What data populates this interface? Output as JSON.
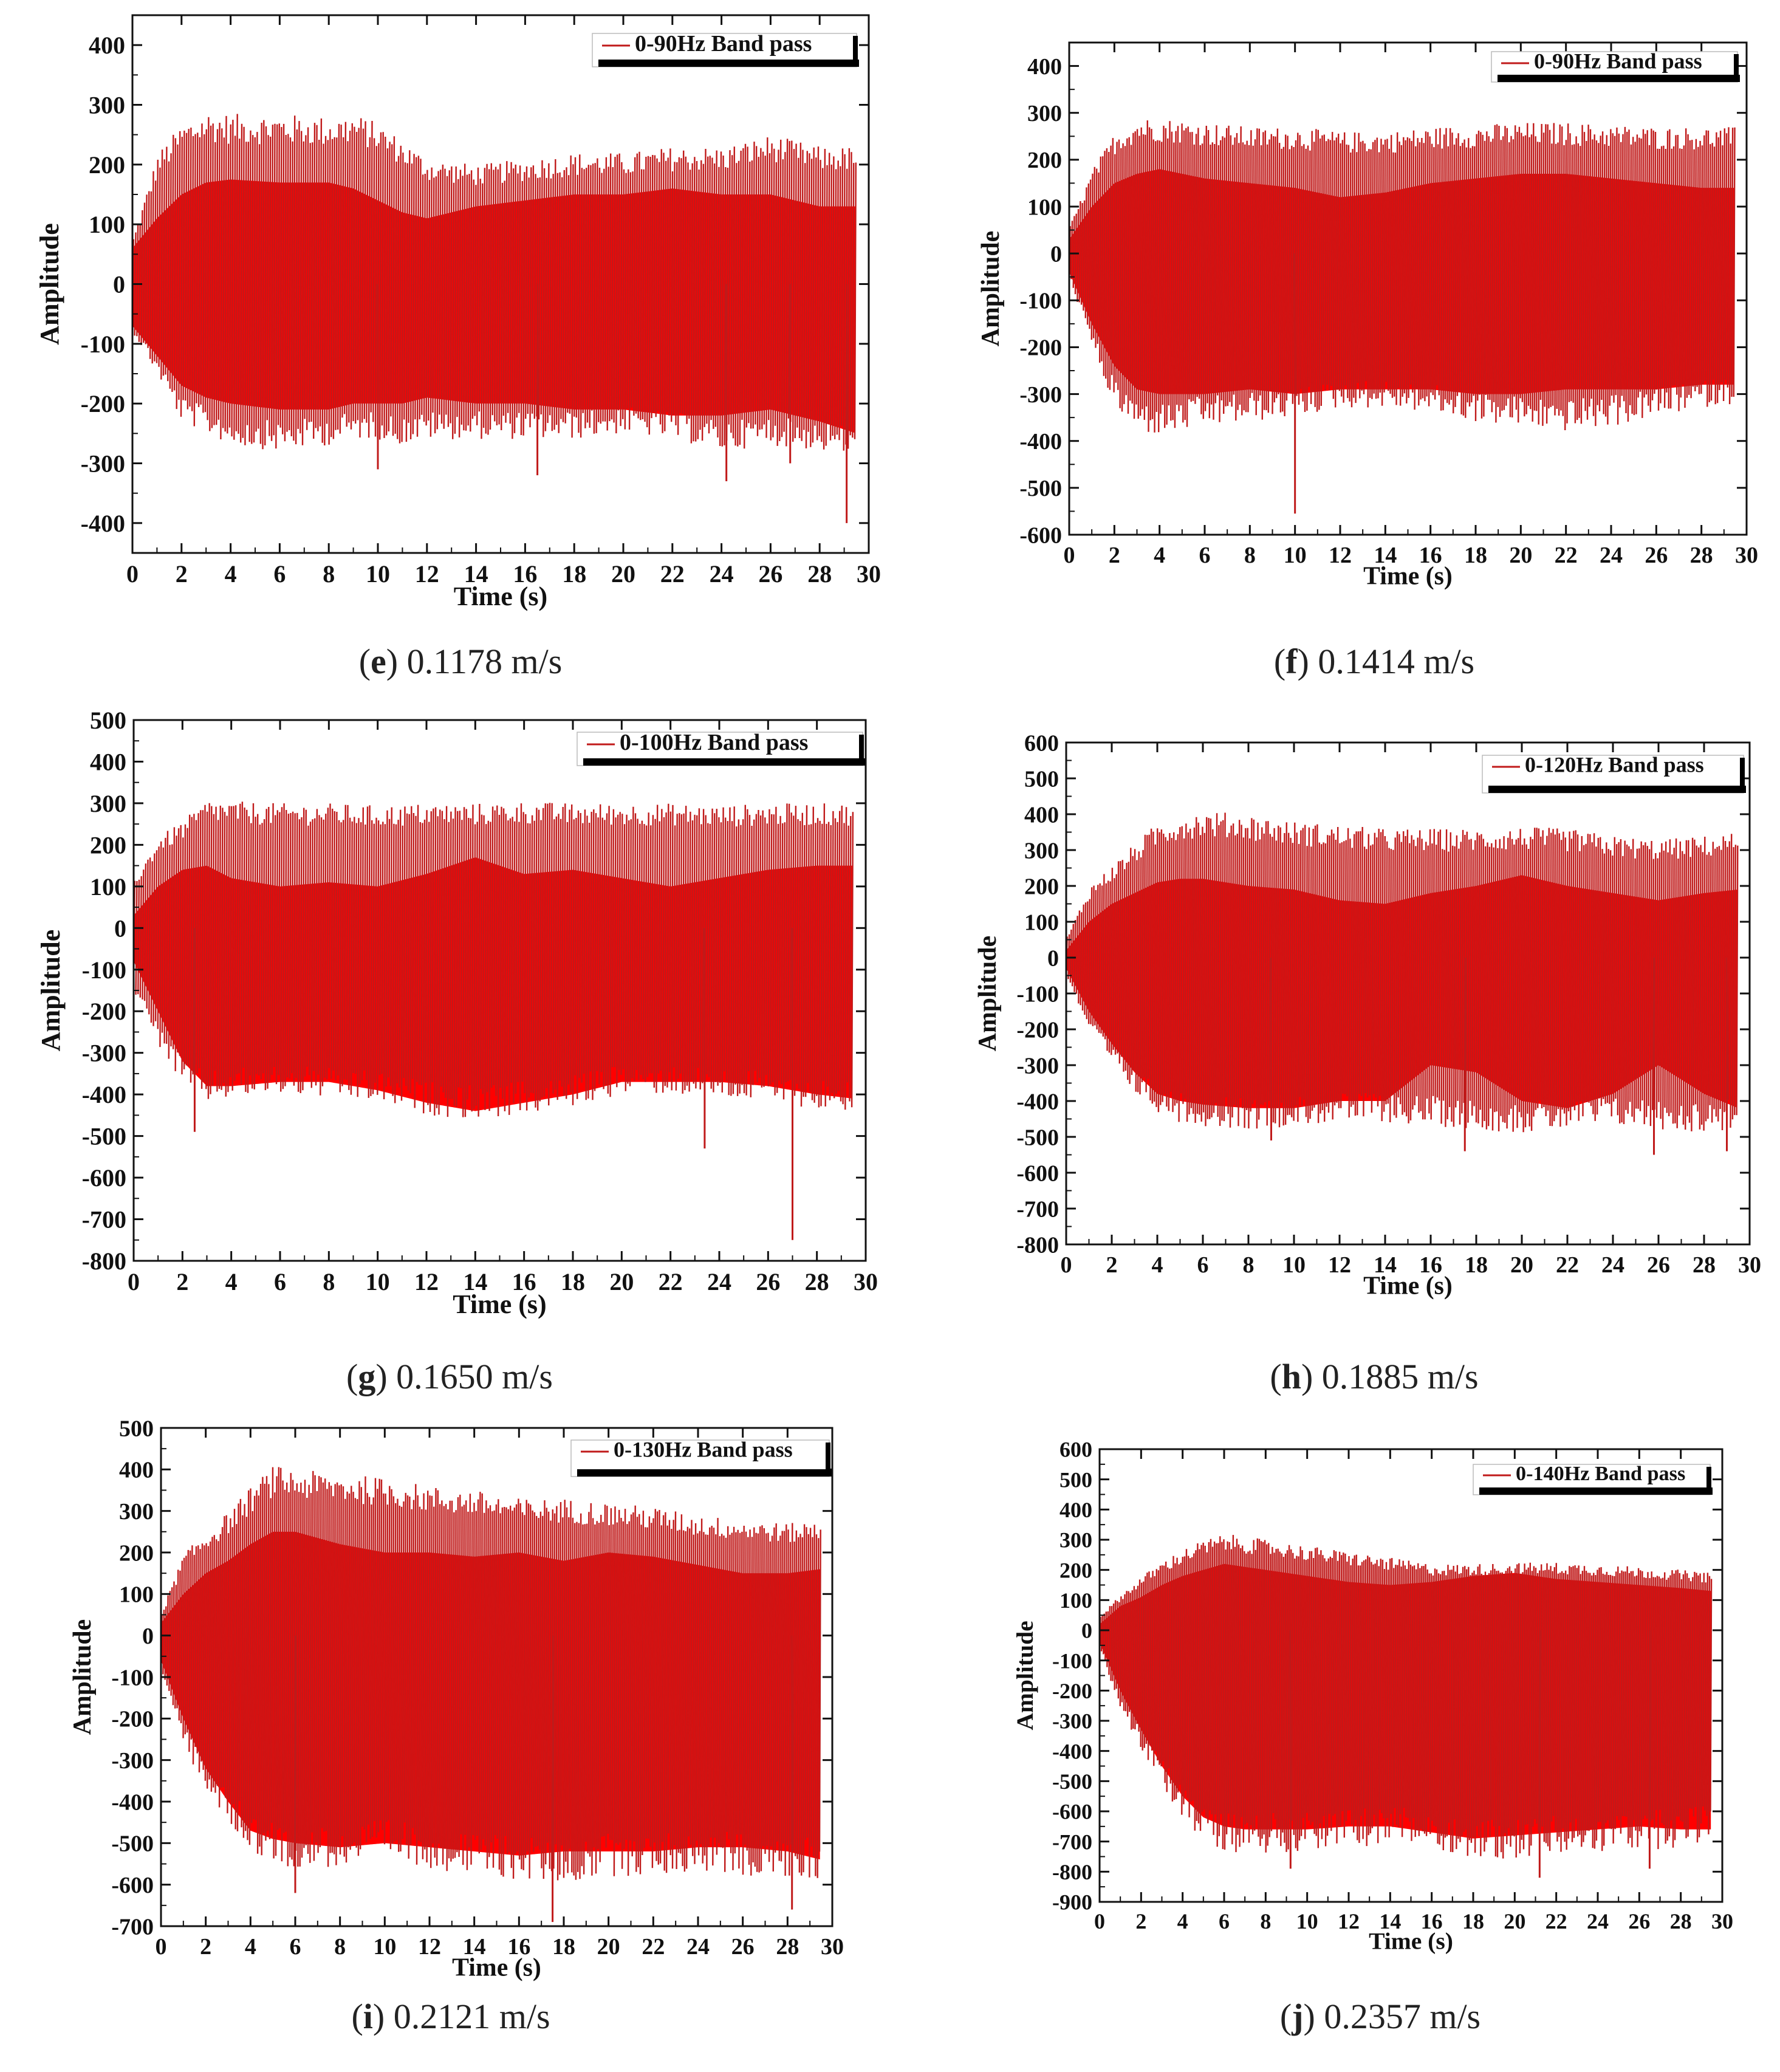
{
  "colors": {
    "signal": "#ff0000",
    "signal_dark": "#c01a1a",
    "axis": "#111111"
  },
  "chart_data": [
    {
      "id": "e",
      "type": "line",
      "title": "",
      "legend": "0-90Hz Band pass",
      "xlabel": "Time (s)",
      "ylabel": "Amplitude",
      "xlim": [
        0,
        30
      ],
      "ylim": [
        -450,
        450
      ],
      "xticks": [
        0,
        2,
        4,
        6,
        8,
        10,
        12,
        14,
        16,
        18,
        20,
        22,
        24,
        26,
        28,
        30
      ],
      "yticks": [
        400,
        300,
        200,
        100,
        0,
        -100,
        -200,
        -300,
        -400
      ],
      "caption_letter": "e",
      "caption_value": "0.1178 m/s",
      "envelope": {
        "t": [
          0,
          1,
          2,
          3,
          4,
          6,
          8,
          9,
          10,
          11,
          12,
          14,
          16,
          18,
          20,
          22,
          24,
          26,
          28,
          29.5
        ],
        "peak_max": [
          80,
          220,
          270,
          290,
          285,
          285,
          280,
          285,
          270,
          240,
          210,
          200,
          210,
          220,
          220,
          230,
          230,
          250,
          230,
          230
        ],
        "inner_max": [
          60,
          110,
          150,
          170,
          175,
          170,
          170,
          160,
          140,
          120,
          110,
          130,
          140,
          150,
          150,
          160,
          150,
          150,
          130,
          130
        ],
        "inner_min": [
          -70,
          -120,
          -170,
          -190,
          -200,
          -210,
          -210,
          -200,
          -200,
          -200,
          -190,
          -200,
          -200,
          -210,
          -210,
          -220,
          -220,
          -210,
          -230,
          -250
        ],
        "peak_min": [
          -80,
          -150,
          -230,
          -250,
          -270,
          -280,
          -270,
          -260,
          -260,
          -270,
          -260,
          -260,
          -260,
          -260,
          -250,
          -260,
          -280,
          -270,
          -280,
          -290
        ]
      },
      "spikes": [
        [
          10,
          -310
        ],
        [
          16.5,
          -320
        ],
        [
          24.2,
          -330
        ],
        [
          29.1,
          -400
        ],
        [
          26.8,
          -300
        ]
      ]
    },
    {
      "id": "f",
      "type": "line",
      "title": "",
      "legend": "0-90Hz Band pass",
      "xlabel": "Time (s)",
      "ylabel": "Amplitude",
      "xlim": [
        0,
        30
      ],
      "ylim": [
        -600,
        450
      ],
      "xticks": [
        0,
        2,
        4,
        6,
        8,
        10,
        12,
        14,
        16,
        18,
        20,
        22,
        24,
        26,
        28,
        30
      ],
      "yticks": [
        400,
        300,
        200,
        100,
        0,
        -100,
        -200,
        -300,
        -400,
        -500,
        -600
      ],
      "caption_letter": "f",
      "caption_value": "0.1414 m/s",
      "envelope": {
        "t": [
          0,
          1,
          2,
          3,
          4,
          6,
          8,
          10,
          12,
          14,
          16,
          18,
          20,
          22,
          24,
          26,
          28,
          29.5
        ],
        "peak_max": [
          60,
          180,
          260,
          290,
          290,
          280,
          270,
          270,
          260,
          260,
          270,
          275,
          280,
          280,
          275,
          270,
          270,
          270
        ],
        "inner_max": [
          30,
          100,
          150,
          170,
          180,
          160,
          150,
          140,
          120,
          130,
          150,
          160,
          170,
          170,
          160,
          150,
          140,
          140
        ],
        "inner_min": [
          -40,
          -150,
          -240,
          -290,
          -300,
          -300,
          -290,
          -300,
          -290,
          -290,
          -290,
          -300,
          -300,
          -290,
          -290,
          -290,
          -280,
          -280
        ],
        "peak_min": [
          -50,
          -200,
          -330,
          -380,
          -390,
          -370,
          -360,
          -350,
          -330,
          -330,
          -340,
          -360,
          -370,
          -380,
          -370,
          -350,
          -330,
          -320
        ]
      },
      "spikes": [
        [
          10,
          -555
        ]
      ]
    },
    {
      "id": "g",
      "type": "line",
      "title": "",
      "legend": "0-100Hz Band pass",
      "xlabel": "Time (s)",
      "ylabel": "Amplitude",
      "xlim": [
        0,
        30
      ],
      "ylim": [
        -800,
        500
      ],
      "xticks": [
        0,
        2,
        4,
        6,
        8,
        10,
        12,
        14,
        16,
        18,
        20,
        22,
        24,
        26,
        28,
        30
      ],
      "yticks": [
        500,
        400,
        300,
        200,
        100,
        0,
        -100,
        -200,
        -300,
        -400,
        -500,
        -600,
        -700,
        -800
      ],
      "caption_letter": "g",
      "caption_value": "0.1650 m/s",
      "envelope": {
        "t": [
          0,
          1,
          2,
          3,
          4,
          6,
          8,
          10,
          12,
          14,
          16,
          18,
          20,
          22,
          24,
          26,
          28,
          29.5
        ],
        "peak_max": [
          120,
          220,
          260,
          310,
          305,
          300,
          300,
          295,
          300,
          300,
          305,
          300,
          300,
          300,
          295,
          300,
          300,
          300
        ],
        "inner_max": [
          30,
          100,
          140,
          150,
          120,
          100,
          110,
          100,
          130,
          170,
          130,
          140,
          120,
          100,
          120,
          140,
          150,
          150
        ],
        "inner_min": [
          -80,
          -200,
          -320,
          -380,
          -380,
          -370,
          -370,
          -390,
          -420,
          -440,
          -420,
          -400,
          -370,
          -370,
          -370,
          -380,
          -400,
          -410
        ],
        "peak_min": [
          -150,
          -280,
          -380,
          -420,
          -410,
          -400,
          -410,
          -420,
          -450,
          -460,
          -450,
          -430,
          -400,
          -400,
          -410,
          -420,
          -440,
          -440
        ]
      },
      "spikes": [
        [
          2.5,
          -490
        ],
        [
          23.4,
          -530
        ],
        [
          27,
          -750
        ]
      ]
    },
    {
      "id": "h",
      "type": "line",
      "title": "",
      "legend": "0-120Hz Band pass",
      "xlabel": "Time (s)",
      "ylabel": "Amplitude",
      "xlim": [
        0,
        30
      ],
      "ylim": [
        -800,
        600
      ],
      "xticks": [
        0,
        2,
        4,
        6,
        8,
        10,
        12,
        14,
        16,
        18,
        20,
        22,
        24,
        26,
        28,
        30
      ],
      "yticks": [
        600,
        500,
        400,
        300,
        200,
        100,
        0,
        -100,
        -200,
        -300,
        -400,
        -500,
        -600,
        -700,
        -800
      ],
      "caption_letter": "h",
      "caption_value": "0.1885 m/s",
      "envelope": {
        "t": [
          0,
          1,
          2,
          3,
          4,
          5,
          6,
          8,
          10,
          12,
          14,
          16,
          18,
          20,
          22,
          24,
          26,
          28,
          29.5
        ],
        "peak_max": [
          60,
          200,
          260,
          320,
          380,
          400,
          410,
          400,
          380,
          370,
          360,
          360,
          360,
          365,
          360,
          340,
          330,
          340,
          350
        ],
        "inner_max": [
          20,
          100,
          150,
          180,
          210,
          220,
          220,
          200,
          190,
          160,
          150,
          180,
          200,
          230,
          200,
          180,
          160,
          180,
          190
        ],
        "inner_min": [
          -30,
          -150,
          -240,
          -320,
          -380,
          -400,
          -410,
          -420,
          -420,
          -400,
          -400,
          -300,
          -320,
          -400,
          -420,
          -380,
          -300,
          -380,
          -420
        ],
        "peak_min": [
          -50,
          -200,
          -300,
          -380,
          -430,
          -460,
          -470,
          -480,
          -470,
          -460,
          -460,
          -470,
          -480,
          -490,
          -480,
          -470,
          -480,
          -490,
          -480
        ]
      },
      "spikes": [
        [
          9,
          -510
        ],
        [
          17.5,
          -540
        ],
        [
          25.8,
          -550
        ],
        [
          29,
          -540
        ]
      ]
    },
    {
      "id": "i",
      "type": "line",
      "title": "",
      "legend": "0-130Hz Band pass",
      "xlabel": "Time (s)",
      "ylabel": "Amplitude",
      "xlim": [
        0,
        30
      ],
      "ylim": [
        -700,
        500
      ],
      "xticks": [
        0,
        2,
        4,
        6,
        8,
        10,
        12,
        14,
        16,
        18,
        20,
        22,
        24,
        26,
        28,
        30
      ],
      "yticks": [
        500,
        400,
        300,
        200,
        100,
        0,
        -100,
        -200,
        -300,
        -400,
        -500,
        -600,
        -700
      ],
      "caption_letter": "i",
      "caption_value": "0.2121 m/s",
      "envelope": {
        "t": [
          0,
          1,
          2,
          3,
          4,
          5,
          6,
          8,
          10,
          12,
          14,
          16,
          18,
          20,
          22,
          24,
          26,
          28,
          29.5
        ],
        "peak_max": [
          60,
          200,
          250,
          300,
          360,
          410,
          400,
          390,
          380,
          360,
          350,
          330,
          330,
          320,
          310,
          290,
          280,
          270,
          280
        ],
        "inner_max": [
          30,
          100,
          150,
          180,
          220,
          250,
          250,
          220,
          200,
          200,
          190,
          200,
          180,
          200,
          190,
          170,
          150,
          150,
          160
        ],
        "inner_min": [
          -60,
          -200,
          -320,
          -400,
          -470,
          -490,
          -500,
          -510,
          -500,
          -510,
          -520,
          -530,
          -520,
          -520,
          -520,
          -510,
          -510,
          -520,
          -540
        ],
        "peak_min": [
          -80,
          -260,
          -380,
          -450,
          -520,
          -550,
          -560,
          -560,
          -540,
          -560,
          -580,
          -590,
          -600,
          -580,
          -580,
          -570,
          -580,
          -590,
          -590
        ]
      },
      "spikes": [
        [
          6,
          -620
        ],
        [
          17.5,
          -690
        ],
        [
          28.2,
          -660
        ]
      ]
    },
    {
      "id": "j",
      "type": "line",
      "title": "",
      "legend": "0-140Hz Band pass",
      "xlabel": "Time (s)",
      "ylabel": "Amplitude",
      "xlim": [
        0,
        30
      ],
      "ylim": [
        -900,
        600
      ],
      "xticks": [
        0,
        2,
        4,
        6,
        8,
        10,
        12,
        14,
        16,
        18,
        20,
        22,
        24,
        26,
        28,
        30
      ],
      "yticks": [
        600,
        500,
        400,
        300,
        200,
        100,
        0,
        -100,
        -200,
        -300,
        -400,
        -500,
        -600,
        -700,
        -800,
        -900
      ],
      "caption_letter": "j",
      "caption_value": "0.2357 m/s",
      "envelope": {
        "t": [
          0,
          1,
          2,
          3,
          4,
          5,
          6,
          7,
          8,
          10,
          12,
          14,
          16,
          18,
          20,
          22,
          24,
          26,
          28,
          29.5
        ],
        "peak_max": [
          50,
          120,
          180,
          230,
          270,
          300,
          320,
          310,
          300,
          280,
          260,
          240,
          220,
          220,
          225,
          225,
          220,
          210,
          200,
          190
        ],
        "inner_max": [
          20,
          80,
          110,
          150,
          180,
          200,
          220,
          210,
          200,
          180,
          160,
          150,
          160,
          180,
          190,
          170,
          160,
          150,
          140,
          130
        ],
        "inner_min": [
          -40,
          -200,
          -330,
          -450,
          -550,
          -620,
          -650,
          -660,
          -660,
          -660,
          -650,
          -650,
          -670,
          -690,
          -680,
          -670,
          -660,
          -650,
          -660,
          -660
        ],
        "peak_min": [
          -60,
          -260,
          -400,
          -520,
          -620,
          -700,
          -730,
          -740,
          -740,
          -730,
          -720,
          -710,
          -720,
          -760,
          -760,
          -750,
          -740,
          -730,
          -720,
          -700
        ]
      },
      "spikes": [
        [
          9.2,
          -790
        ],
        [
          21.2,
          -820
        ],
        [
          26.5,
          -790
        ]
      ]
    }
  ]
}
